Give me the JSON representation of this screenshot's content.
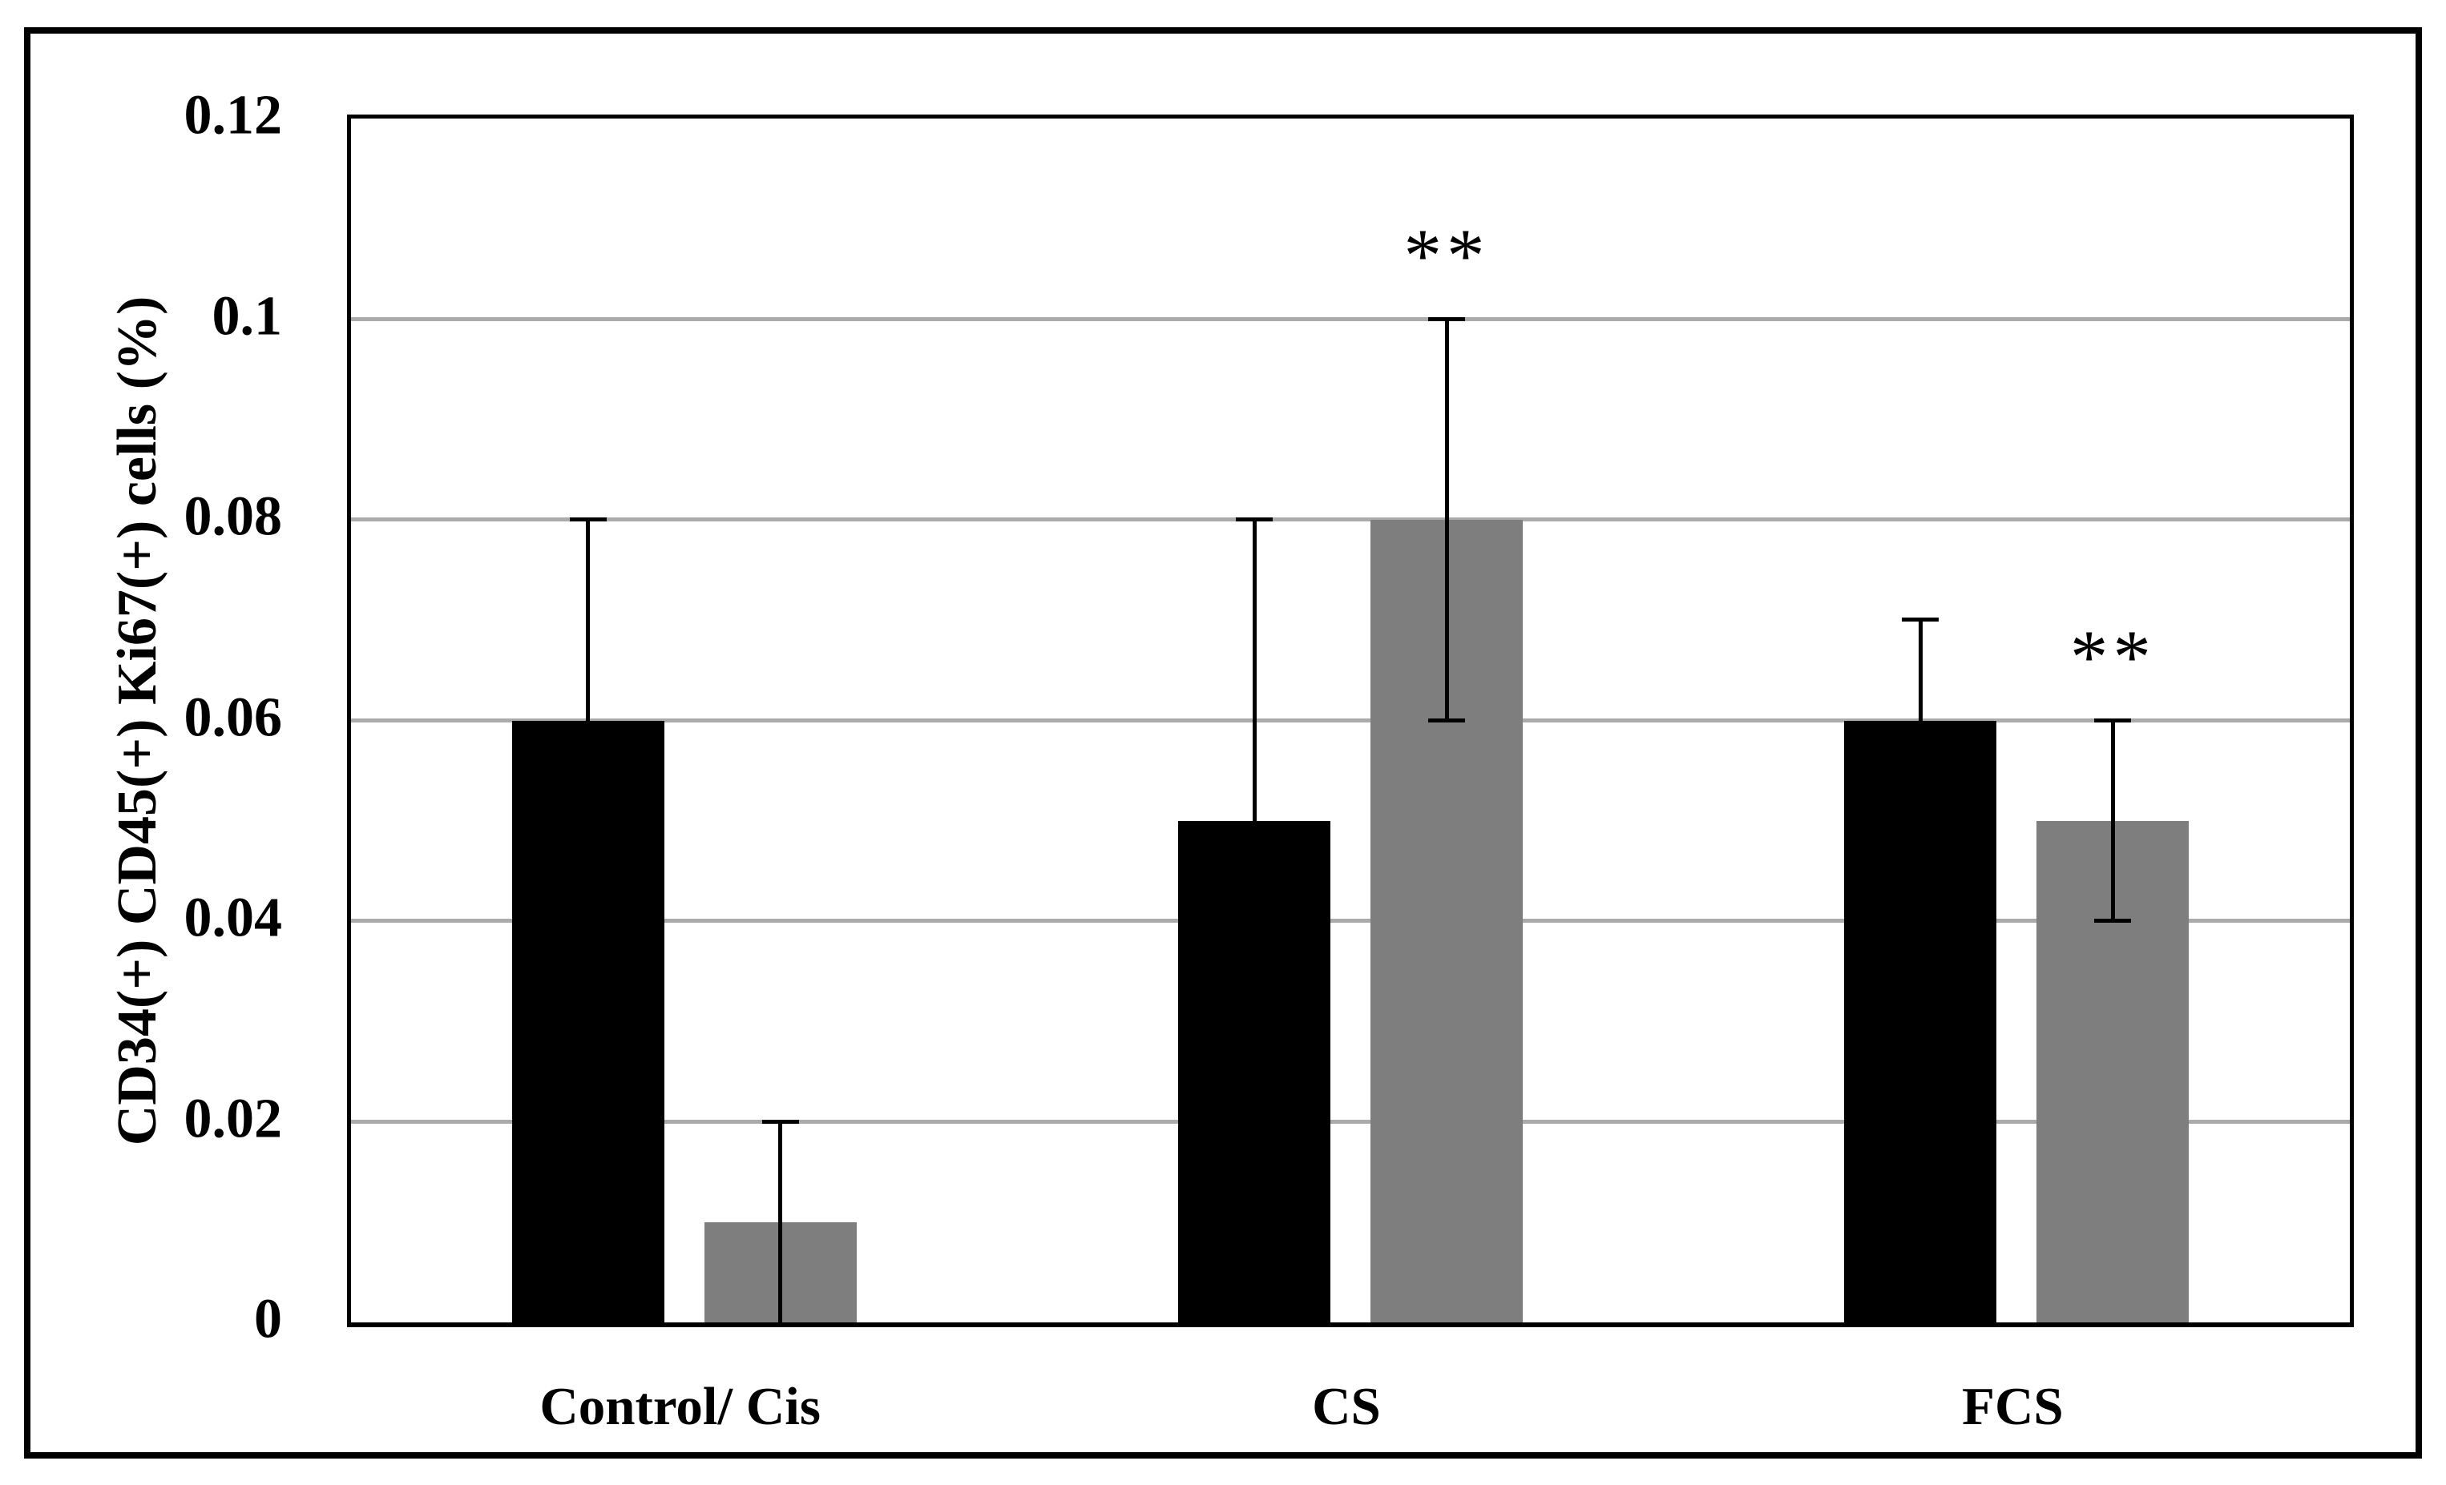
{
  "figure": {
    "background": "#ffffff",
    "border_color": "#000000"
  },
  "chart_data": {
    "type": "bar",
    "title": "",
    "ylabel": "CD34(+) CD45(+) Ki67(+) cells (%)",
    "xlabel": "",
    "ylim": [
      0,
      0.12
    ],
    "ytick_interval": 0.02,
    "yticks": [
      {
        "value": 0,
        "label": "0"
      },
      {
        "value": 0.02,
        "label": "0.02"
      },
      {
        "value": 0.04,
        "label": "0.04"
      },
      {
        "value": 0.06,
        "label": "0.06"
      },
      {
        "value": 0.08,
        "label": "0.08"
      },
      {
        "value": 0.1,
        "label": "0.1"
      },
      {
        "value": 0.12,
        "label": "0.12"
      }
    ],
    "categories": [
      "Control/ Cis",
      "CS",
      "FCS"
    ],
    "grid": "horizontal-only",
    "legend": "none",
    "colors": {
      "gridline": "#ABABAB",
      "axis": "#000000",
      "series_black": "#000000",
      "series_gray": "#7E7E7E"
    },
    "series": [
      {
        "key": "black",
        "color": "#000000",
        "values": [
          0.06,
          0.05,
          0.06
        ],
        "err_top": [
          0.08,
          0.08,
          0.07
        ],
        "err_bottom": [
          null,
          null,
          null
        ],
        "annotations": [
          "",
          "",
          ""
        ]
      },
      {
        "key": "gray",
        "color": "#7E7E7E",
        "values": [
          0.01,
          0.08,
          0.05
        ],
        "err_top": [
          0.02,
          0.1,
          0.06
        ],
        "err_bottom": [
          0,
          0.06,
          0.04
        ],
        "annotations": [
          "",
          "**",
          "**"
        ]
      }
    ]
  }
}
